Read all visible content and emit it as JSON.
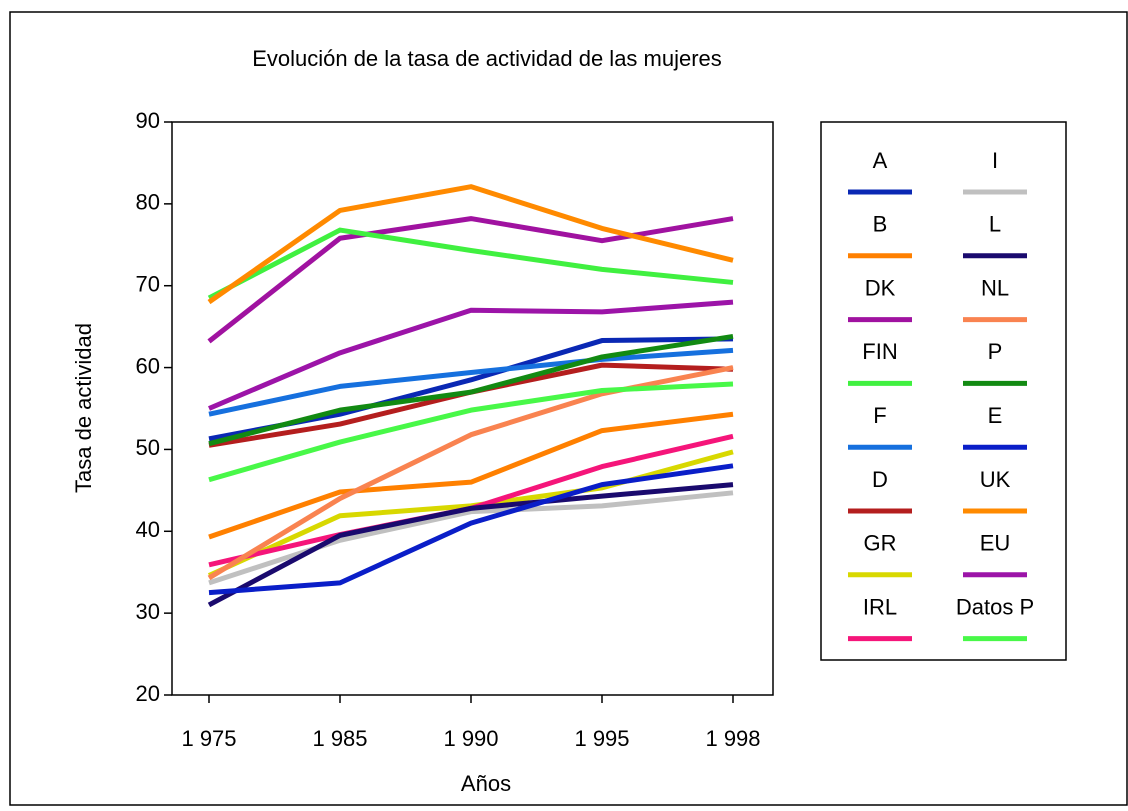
{
  "chart_data": {
    "type": "line",
    "title": "Evolución de la tasa de actividad de las mujeres",
    "x_label": "Años",
    "y_label": "Tasa de actividad",
    "categories": [
      "1 975",
      "1 985",
      "1 990",
      "1 995",
      "1 998"
    ],
    "ylim": [
      20,
      90
    ],
    "yticks": [
      20,
      30,
      40,
      50,
      60,
      70,
      80,
      90
    ],
    "series": [
      {
        "name": "A",
        "color": "#0a28b4",
        "values": [
          51.3,
          54.3,
          58.5,
          63.3,
          63.5
        ]
      },
      {
        "name": "B",
        "color": "#ff8000",
        "values": [
          39.3,
          44.8,
          46,
          52.3,
          54.3
        ]
      },
      {
        "name": "DK",
        "color": "#a012a0",
        "values": [
          63.2,
          75.8,
          78.2,
          75.5,
          78.2
        ]
      },
      {
        "name": "FIN",
        "color": "#40f040",
        "values": [
          68.5,
          76.8,
          74.3,
          72,
          70.4
        ]
      },
      {
        "name": "F",
        "color": "#1670de",
        "values": [
          54.3,
          57.7,
          59.4,
          61,
          62.1
        ]
      },
      {
        "name": "D",
        "color": "#b41e1e",
        "values": [
          50.5,
          53.1,
          57,
          60.3,
          59.8
        ]
      },
      {
        "name": "GR",
        "color": "#d8d800",
        "values": [
          34.6,
          41.9,
          43.1,
          45.3,
          49.7
        ]
      },
      {
        "name": "IRL",
        "color": "#f5157a",
        "values": [
          35.9,
          39.6,
          42.8,
          47.9,
          51.6
        ]
      },
      {
        "name": "I",
        "color": "#c0c0c0",
        "values": [
          33.7,
          38.9,
          42.4,
          43.1,
          44.7
        ]
      },
      {
        "name": "L",
        "color": "#1a0a6e",
        "values": [
          31,
          39.5,
          42.8,
          44.3,
          45.7
        ]
      },
      {
        "name": "NL",
        "color": "#f98350",
        "values": [
          34.3,
          44,
          51.8,
          56.8,
          60
        ]
      },
      {
        "name": "P",
        "color": "#128a12",
        "values": [
          50.7,
          54.8,
          57,
          61.3,
          63.8
        ]
      },
      {
        "name": "E",
        "color": "#0a1ec8",
        "values": [
          32.5,
          33.7,
          41,
          45.7,
          48
        ]
      },
      {
        "name": "UK",
        "color": "#ff8a00",
        "values": [
          68,
          79.2,
          82.1,
          77,
          73.1
        ]
      },
      {
        "name": "EU",
        "color": "#9c14a8",
        "values": [
          55,
          61.8,
          67,
          66.8,
          68
        ]
      },
      {
        "name": "Datos P",
        "color": "#48f848",
        "values": [
          46.3,
          50.9,
          54.8,
          57.2,
          58
        ]
      }
    ]
  }
}
